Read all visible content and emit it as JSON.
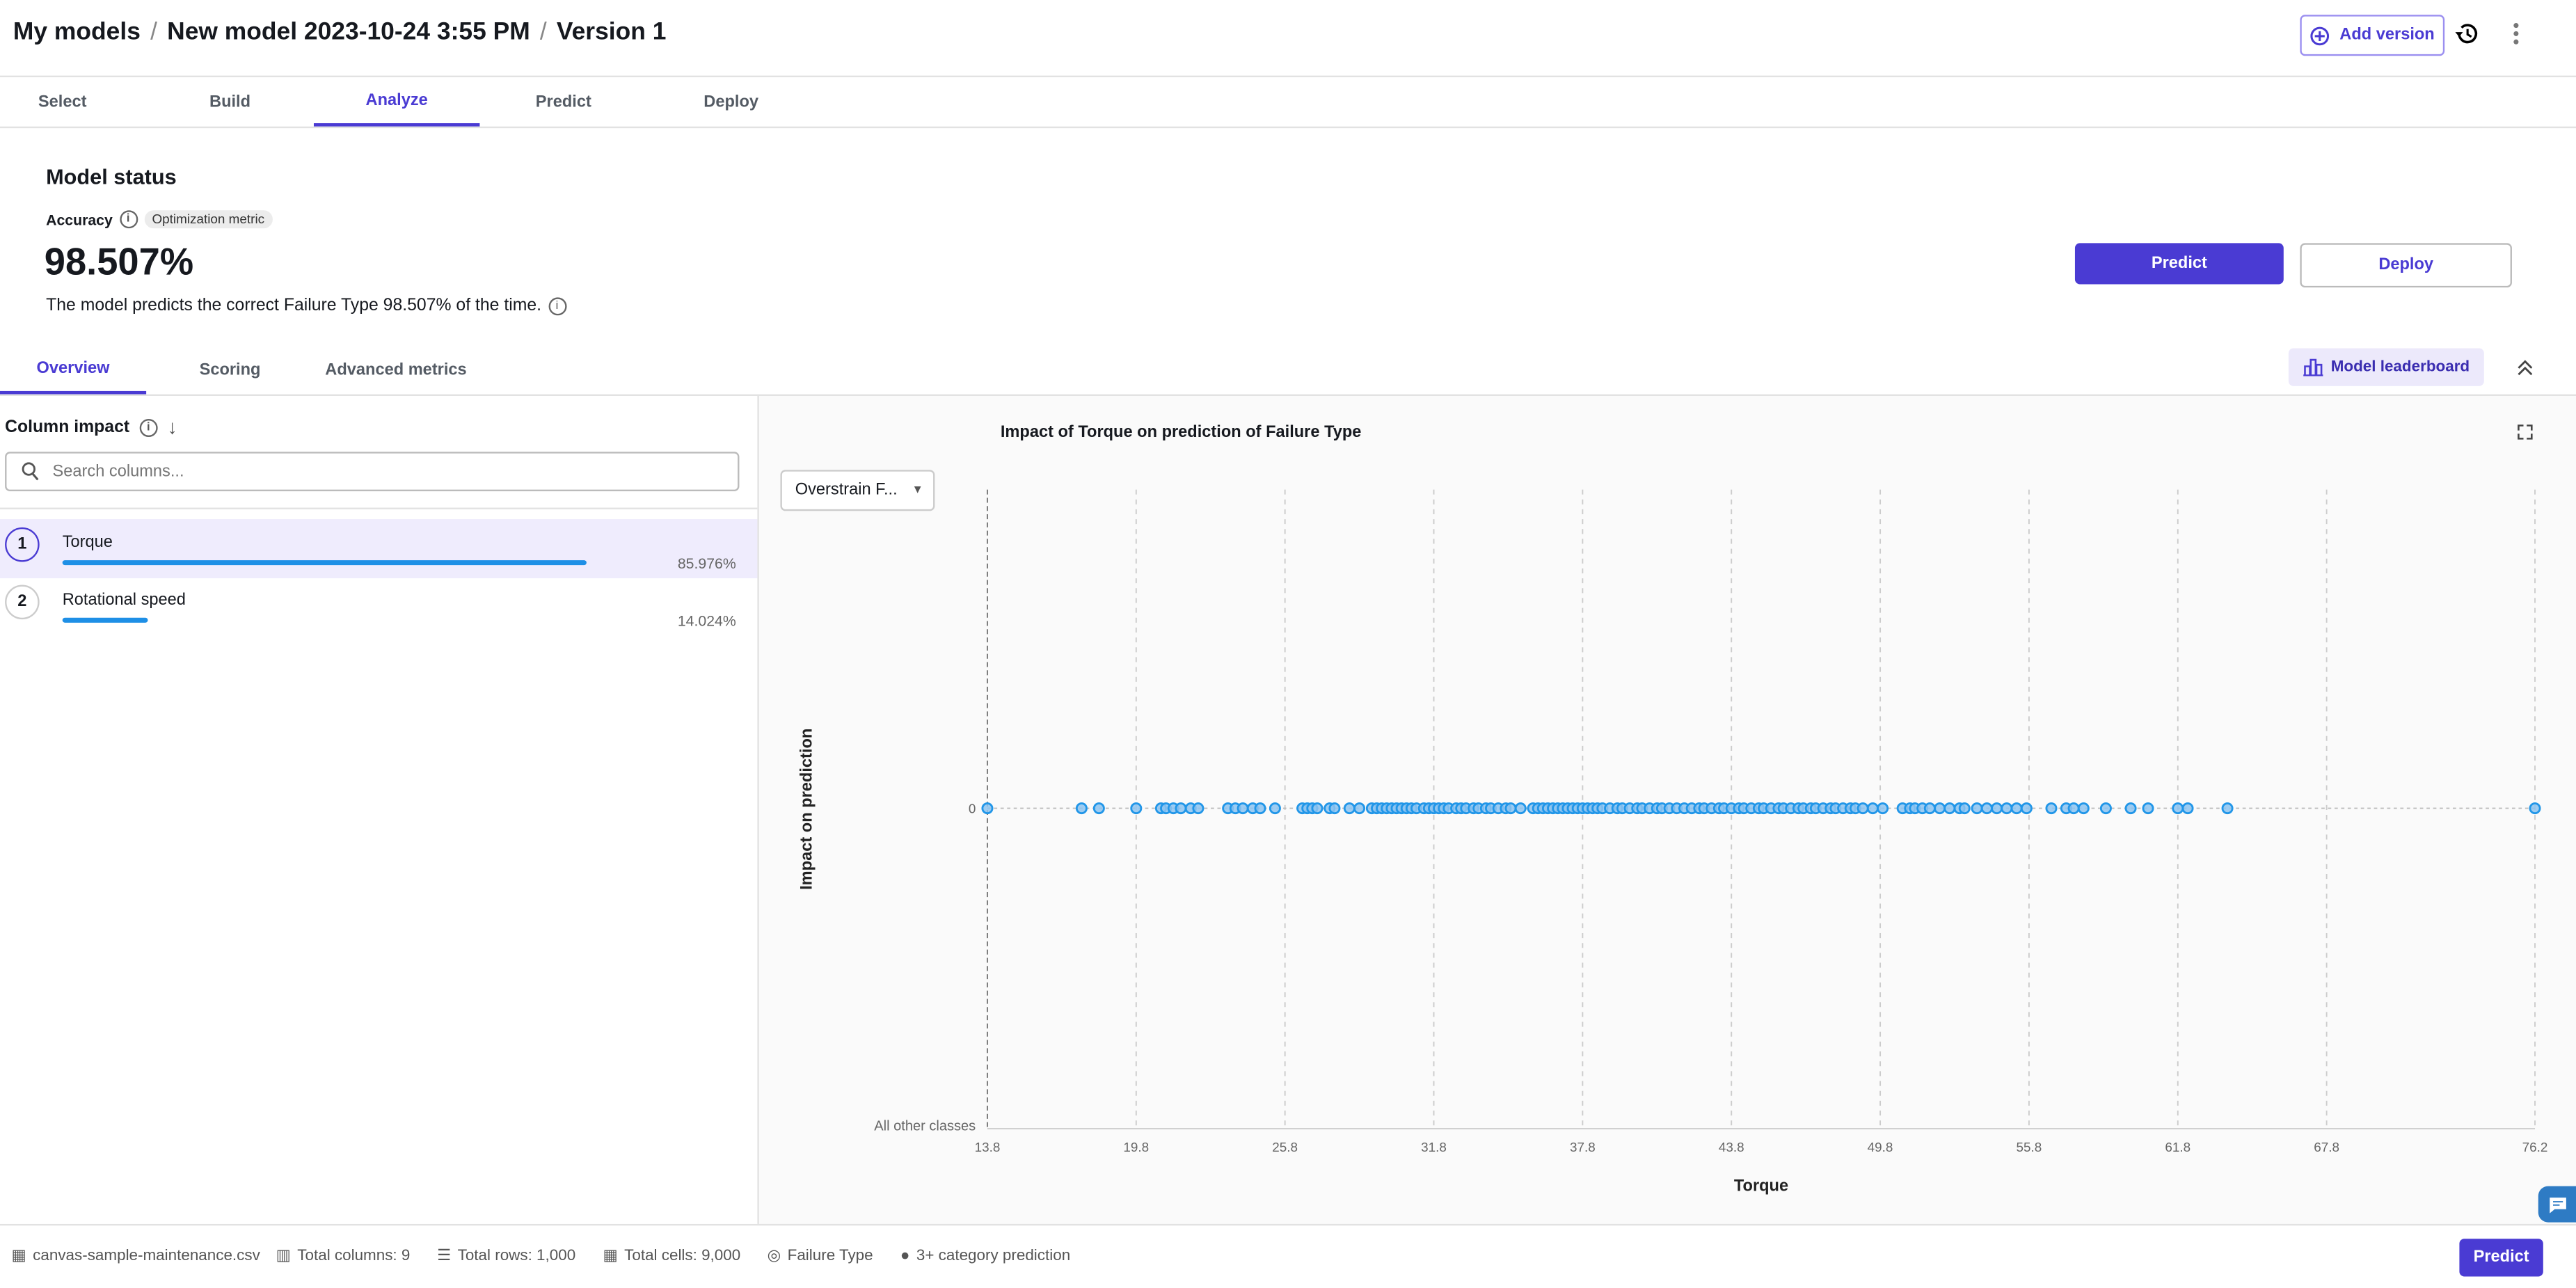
{
  "breadcrumb": [
    "My models",
    "New model 2023-10-24 3:55 PM",
    "Version 1"
  ],
  "header": {
    "add_version": "Add version"
  },
  "steps": [
    "Select",
    "Build",
    "Analyze",
    "Predict",
    "Deploy"
  ],
  "active_step": "Analyze",
  "status": {
    "title": "Model status",
    "metric_label": "Accuracy",
    "metric_chip": "Optimization metric",
    "value": "98.507%",
    "description": "The model predicts the correct Failure Type 98.507% of the time."
  },
  "actions": {
    "predict": "Predict",
    "deploy": "Deploy"
  },
  "subtabs": [
    "Overview",
    "Scoring",
    "Advanced metrics"
  ],
  "leaderboard": "Model leaderboard",
  "column_impact": {
    "title": "Column impact",
    "search_placeholder": "Search columns...",
    "items": [
      {
        "rank": "1",
        "name": "Torque",
        "pct": "85.976%",
        "value": 85.976
      },
      {
        "rank": "2",
        "name": "Rotational speed",
        "pct": "14.024%",
        "value": 14.024
      }
    ]
  },
  "class_select": "Overstrain F...",
  "colors": {
    "accent": "#4a3bd3",
    "point": "#2196e8",
    "bar": "#1e8fe6"
  },
  "chart_data": {
    "type": "scatter",
    "title": "Impact of Torque on prediction of Failure Type",
    "xlabel": "Torque",
    "ylabel": "Impact on prediction",
    "xlim": [
      13.8,
      76.2
    ],
    "xticks": [
      "13.8",
      "19.8",
      "25.8",
      "31.8",
      "37.8",
      "43.8",
      "49.8",
      "55.8",
      "61.8",
      "67.8",
      "76.2"
    ],
    "xtick_values": [
      13.8,
      19.8,
      25.8,
      31.8,
      37.8,
      43.8,
      49.8,
      55.8,
      61.8,
      67.8,
      76.2
    ],
    "yticks": [
      "0"
    ],
    "y_bottom_label": "All other classes",
    "grid": true,
    "y": 0,
    "x": [
      13.8,
      17.6,
      18.3,
      19.8,
      20.8,
      21.0,
      21.3,
      21.6,
      22.0,
      22.3,
      23.5,
      23.8,
      24.1,
      24.5,
      24.8,
      25.4,
      26.5,
      26.7,
      26.9,
      27.1,
      27.6,
      27.8,
      28.4,
      28.8,
      29.3,
      29.5,
      29.7,
      29.9,
      30.1,
      30.3,
      30.5,
      30.7,
      30.9,
      31.1,
      31.4,
      31.6,
      31.8,
      32.0,
      32.2,
      32.4,
      32.7,
      32.9,
      33.1,
      33.4,
      33.6,
      33.9,
      34.1,
      34.4,
      34.7,
      34.9,
      35.3,
      35.8,
      36.0,
      36.2,
      36.4,
      36.6,
      36.8,
      37.0,
      37.2,
      37.4,
      37.6,
      37.8,
      38.0,
      38.2,
      38.4,
      38.6,
      38.9,
      39.2,
      39.4,
      39.7,
      40.0,
      40.2,
      40.5,
      40.8,
      41.0,
      41.3,
      41.6,
      41.9,
      42.2,
      42.5,
      42.7,
      43.0,
      43.3,
      43.5,
      43.8,
      44.1,
      44.3,
      44.6,
      44.9,
      45.1,
      45.4,
      45.7,
      45.9,
      46.2,
      46.5,
      46.7,
      47.0,
      47.2,
      47.5,
      47.8,
      48.0,
      48.3,
      48.6,
      48.8,
      49.1,
      49.5,
      49.9,
      50.7,
      51.0,
      51.2,
      51.5,
      51.8,
      52.2,
      52.6,
      53.0,
      53.2,
      53.7,
      54.1,
      54.5,
      54.9,
      55.3,
      55.7,
      56.7,
      57.3,
      57.6,
      58.0,
      58.9,
      59.9,
      60.6,
      61.8,
      62.2,
      63.8,
      76.2
    ]
  },
  "footer": {
    "file": "canvas-sample-maintenance.csv",
    "columns": "Total columns: 9",
    "rows": "Total rows: 1,000",
    "cells": "Total cells: 9,000",
    "target": "Failure Type",
    "type": "3+ category prediction",
    "predict": "Predict"
  }
}
